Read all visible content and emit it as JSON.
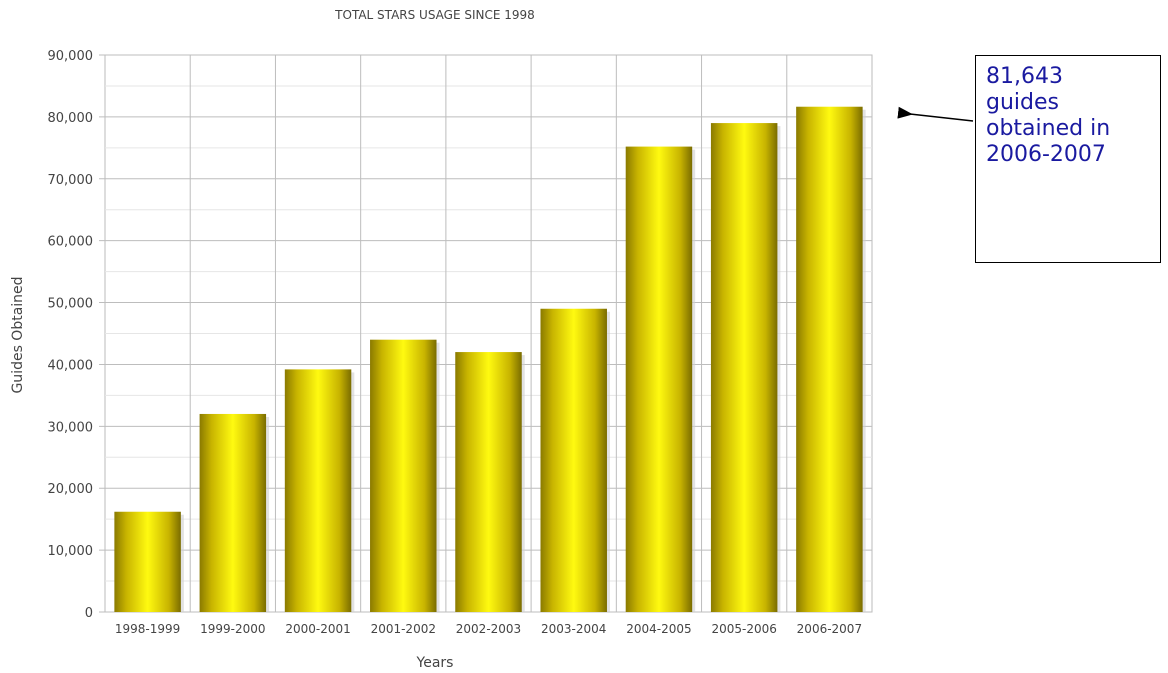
{
  "chart_data": {
    "type": "bar",
    "title": "TOTAL STARS USAGE SINCE 1998",
    "xlabel": "Years",
    "ylabel": "Guides Obtained",
    "categories": [
      "1998-1999",
      "1999-2000",
      "2000-2001",
      "2001-2002",
      "2002-2003",
      "2003-2004",
      "2004-2005",
      "2005-2006",
      "2006-2007"
    ],
    "values": [
      16200,
      32000,
      39200,
      44000,
      42000,
      49000,
      75200,
      79000,
      81643
    ],
    "ylim": [
      0,
      90000
    ],
    "yticks": [
      0,
      10000,
      20000,
      30000,
      40000,
      50000,
      60000,
      70000,
      80000,
      90000
    ],
    "ytick_labels": [
      "0",
      "10,000",
      "20,000",
      "30,000",
      "40,000",
      "50,000",
      "60,000",
      "70,000",
      "80,000",
      "90,000"
    ],
    "grid": true,
    "bar_color": "#e6d200",
    "bar_edge_color": "#8a7a00"
  },
  "annotation": {
    "lines": [
      "81,643",
      "guides",
      "obtained in",
      "2006-2007"
    ],
    "text_color": "#1a1aa0",
    "points_to": "2006-2007"
  }
}
